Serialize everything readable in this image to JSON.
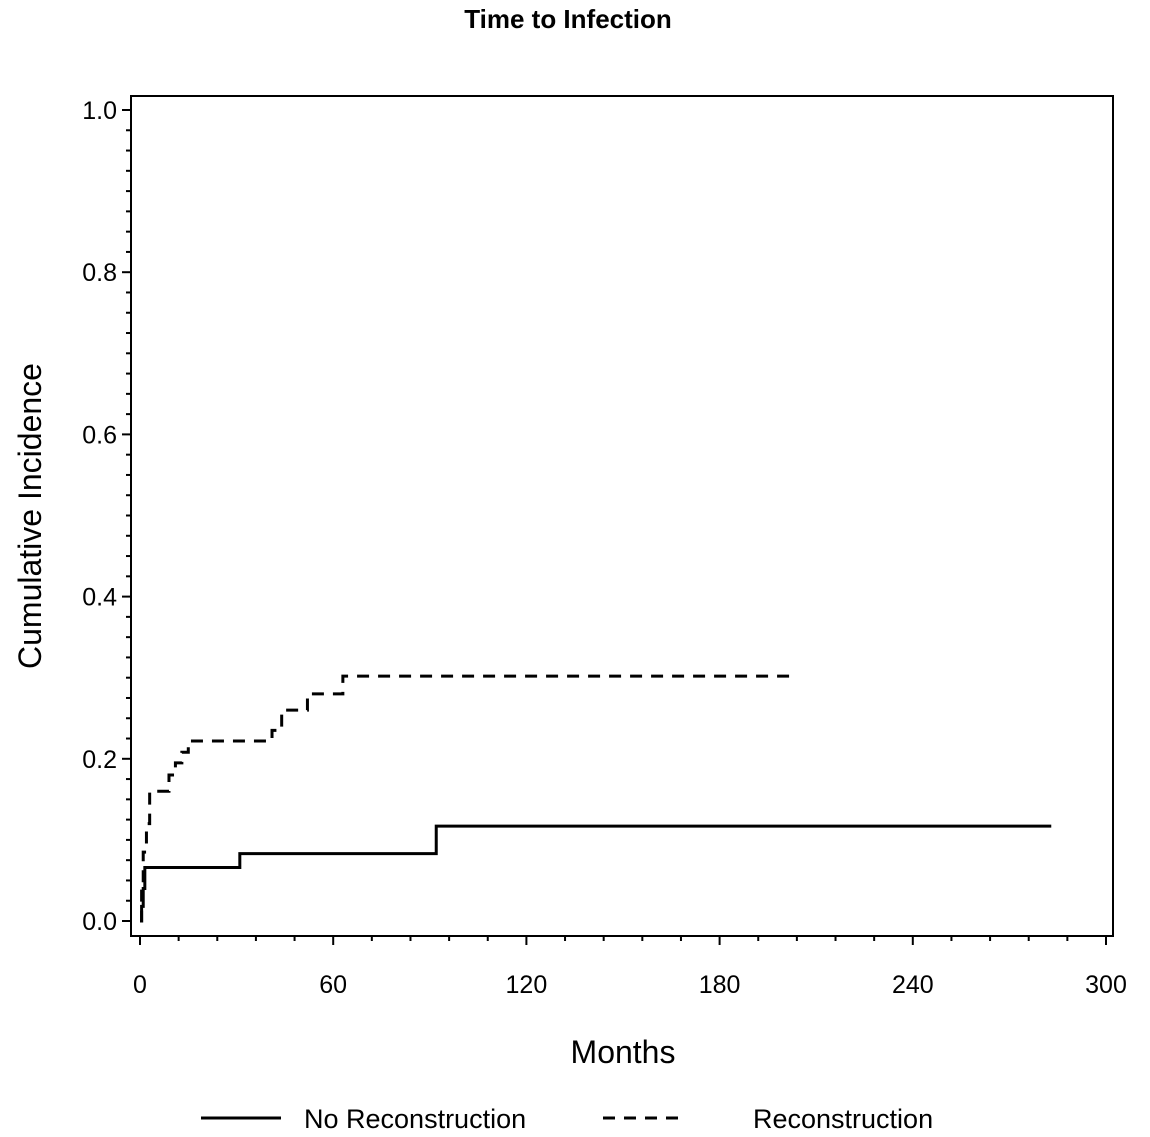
{
  "chart_data": {
    "type": "line",
    "title": "Time to Infection",
    "xlabel": "Months",
    "ylabel": "Cumulative Incidence",
    "xlim": [
      0,
      300
    ],
    "ylim": [
      0,
      1.0
    ],
    "x_ticks": [
      0,
      60,
      120,
      180,
      240,
      300
    ],
    "x_tick_labels": [
      "0",
      "60",
      "120",
      "180",
      "240",
      "300"
    ],
    "y_ticks": [
      0,
      0.2,
      0.4,
      0.6,
      0.8,
      1.0
    ],
    "y_tick_labels": [
      "0.0",
      "0.2",
      "0.4",
      "0.6",
      "0.8",
      "1.0"
    ],
    "grid": false,
    "legend_placement": "bottom",
    "step": true,
    "series": [
      {
        "name": "No Reconstruction",
        "line_style": "solid",
        "color": "#000000",
        "points": [
          {
            "x": 0,
            "y": 0
          },
          {
            "x": 0.5,
            "y": 0.018
          },
          {
            "x": 1,
            "y": 0.04
          },
          {
            "x": 1.5,
            "y": 0.066
          },
          {
            "x": 31,
            "y": 0.083
          },
          {
            "x": 92,
            "y": 0.117
          },
          {
            "x": 283,
            "y": 0.117
          }
        ]
      },
      {
        "name": "Reconstruction",
        "line_style": "dashed",
        "color": "#000000",
        "points": [
          {
            "x": 0,
            "y": 0
          },
          {
            "x": 0.5,
            "y": 0.04
          },
          {
            "x": 1,
            "y": 0.085
          },
          {
            "x": 2,
            "y": 0.12
          },
          {
            "x": 3,
            "y": 0.16
          },
          {
            "x": 9,
            "y": 0.18
          },
          {
            "x": 11,
            "y": 0.195
          },
          {
            "x": 13,
            "y": 0.208
          },
          {
            "x": 15,
            "y": 0.222
          },
          {
            "x": 41,
            "y": 0.235
          },
          {
            "x": 44,
            "y": 0.26
          },
          {
            "x": 52,
            "y": 0.28
          },
          {
            "x": 63,
            "y": 0.302
          },
          {
            "x": 204,
            "y": 0.302
          }
        ]
      }
    ]
  }
}
